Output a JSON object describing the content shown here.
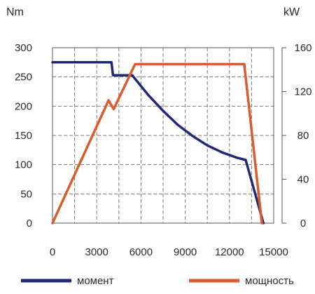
{
  "chart_data": {
    "type": "line",
    "title": "",
    "y_left_unit": "Nm",
    "y_right_unit": "kW",
    "xlabel": "",
    "xlim": [
      0,
      15000
    ],
    "ylim_left": [
      0,
      300
    ],
    "ylim_right": [
      0,
      160
    ],
    "grid": true,
    "legend_position": "bottom",
    "x_tick_values": [
      0,
      3000,
      6000,
      9000,
      12000,
      15000
    ],
    "x_tick_labels": [
      "0",
      "3000",
      "6000",
      "9000",
      "12000",
      "15000"
    ],
    "y_left_tick_values": [
      0,
      50,
      100,
      150,
      200,
      250,
      300
    ],
    "y_left_tick_labels": [
      "0",
      "50",
      "100",
      "150",
      "200",
      "250",
      "300"
    ],
    "y_right_tick_values": [
      0,
      40,
      80,
      120,
      160
    ],
    "y_right_tick_labels": [
      "0",
      "40",
      "80",
      "120",
      "160"
    ],
    "series": [
      {
        "name": "момент",
        "axis": "left",
        "color": "#1e2a78",
        "x": [
          0,
          4000,
          4100,
          5000,
          5400,
          6500,
          7500,
          8500,
          9500,
          10500,
          11500,
          12500,
          13100,
          14300
        ],
        "y": [
          275,
          275,
          253,
          253,
          253,
          219,
          192,
          168,
          149,
          133,
          121,
          112,
          108,
          0
        ]
      },
      {
        "name": "мощность",
        "axis": "right",
        "color": "#d95d2c",
        "x": [
          0,
          3800,
          4150,
          5600,
          13000,
          14200
        ],
        "y": [
          0,
          112,
          104,
          145,
          145,
          0
        ]
      }
    ]
  }
}
